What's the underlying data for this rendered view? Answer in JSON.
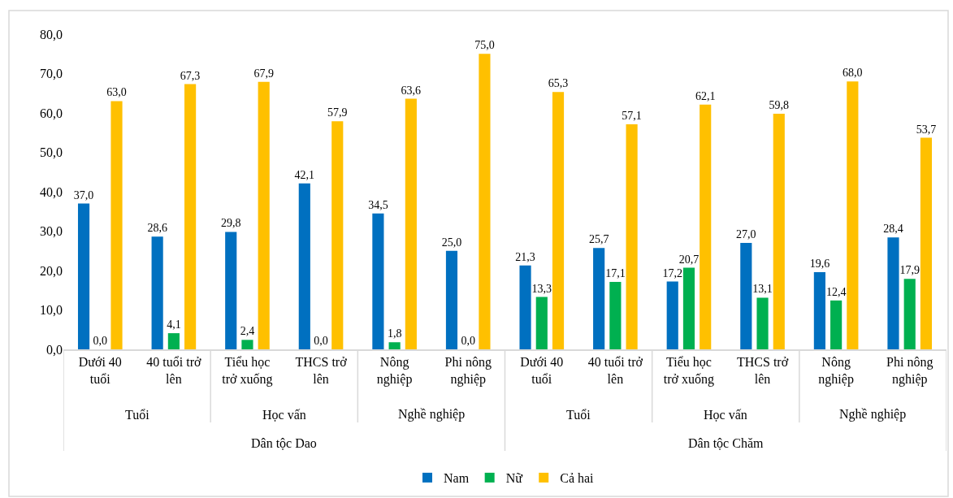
{
  "chart_data": {
    "type": "bar",
    "categories": [
      "Dưới 40 tuổi",
      "40 tuổi trở lên",
      "Tiểu học trở xuống",
      "THCS trở lên",
      "Nông nghiệp",
      "Phi nông nghiệp",
      "Dưới 40 tuổi",
      "40 tuổi trở lên",
      "Tiểu học trở xuống",
      "THCS trở lên",
      "Nông nghiệp",
      "Phi nông nghiệp"
    ],
    "series": [
      {
        "name": "Nam",
        "color": "#0070c0",
        "values": [
          37.0,
          28.6,
          29.8,
          42.1,
          34.5,
          25.0,
          21.3,
          25.7,
          17.2,
          27.0,
          19.6,
          28.4
        ],
        "value_labels": [
          "37,0",
          "28,6",
          "29,8",
          "42,1",
          "34,5",
          "25,0",
          "21,3",
          "25,7",
          "17,2",
          "27,0",
          "19,6",
          "28,4"
        ]
      },
      {
        "name": "Nữ",
        "color": "#00b050",
        "values": [
          0.0,
          4.1,
          2.4,
          0.0,
          1.8,
          0.0,
          13.3,
          17.1,
          20.7,
          13.1,
          12.4,
          17.9
        ],
        "value_labels": [
          "0,0",
          "4,1",
          "2,4",
          "0,0",
          "1,8",
          "0,0",
          "13,3",
          "17,1",
          "20,7",
          "13,1",
          "12,4",
          "17,9"
        ]
      },
      {
        "name": "Cả hai",
        "color": "#ffc000",
        "values": [
          63.0,
          67.3,
          67.9,
          57.9,
          63.6,
          75.0,
          65.3,
          57.1,
          62.1,
          59.8,
          68.0,
          53.7
        ],
        "value_labels": [
          "63,0",
          "67,3",
          "67,9",
          "57,9",
          "63,6",
          "75,0",
          "65,3",
          "57,1",
          "62,1",
          "59,8",
          "68,0",
          "53,7"
        ]
      }
    ],
    "ylim": [
      0,
      80
    ],
    "yticks": [
      {
        "value": 0,
        "label": "0,0"
      },
      {
        "value": 10,
        "label": "10,0"
      },
      {
        "value": 20,
        "label": "20,0"
      },
      {
        "value": 30,
        "label": "30,0"
      },
      {
        "value": 40,
        "label": "40,0"
      },
      {
        "value": 50,
        "label": "50,0"
      },
      {
        "value": 60,
        "label": "60,0"
      },
      {
        "value": 70,
        "label": "70,0"
      },
      {
        "value": 80,
        "label": "80,0"
      }
    ],
    "annotations": [
      "Tuổi",
      "Học vấn",
      "Nghề nghiệp",
      "Tuổi",
      "Học vấn",
      "Nghề nghiệp",
      "Dân tộc Dao",
      "Dân tộc Chăm"
    ],
    "legend": "bottom"
  }
}
